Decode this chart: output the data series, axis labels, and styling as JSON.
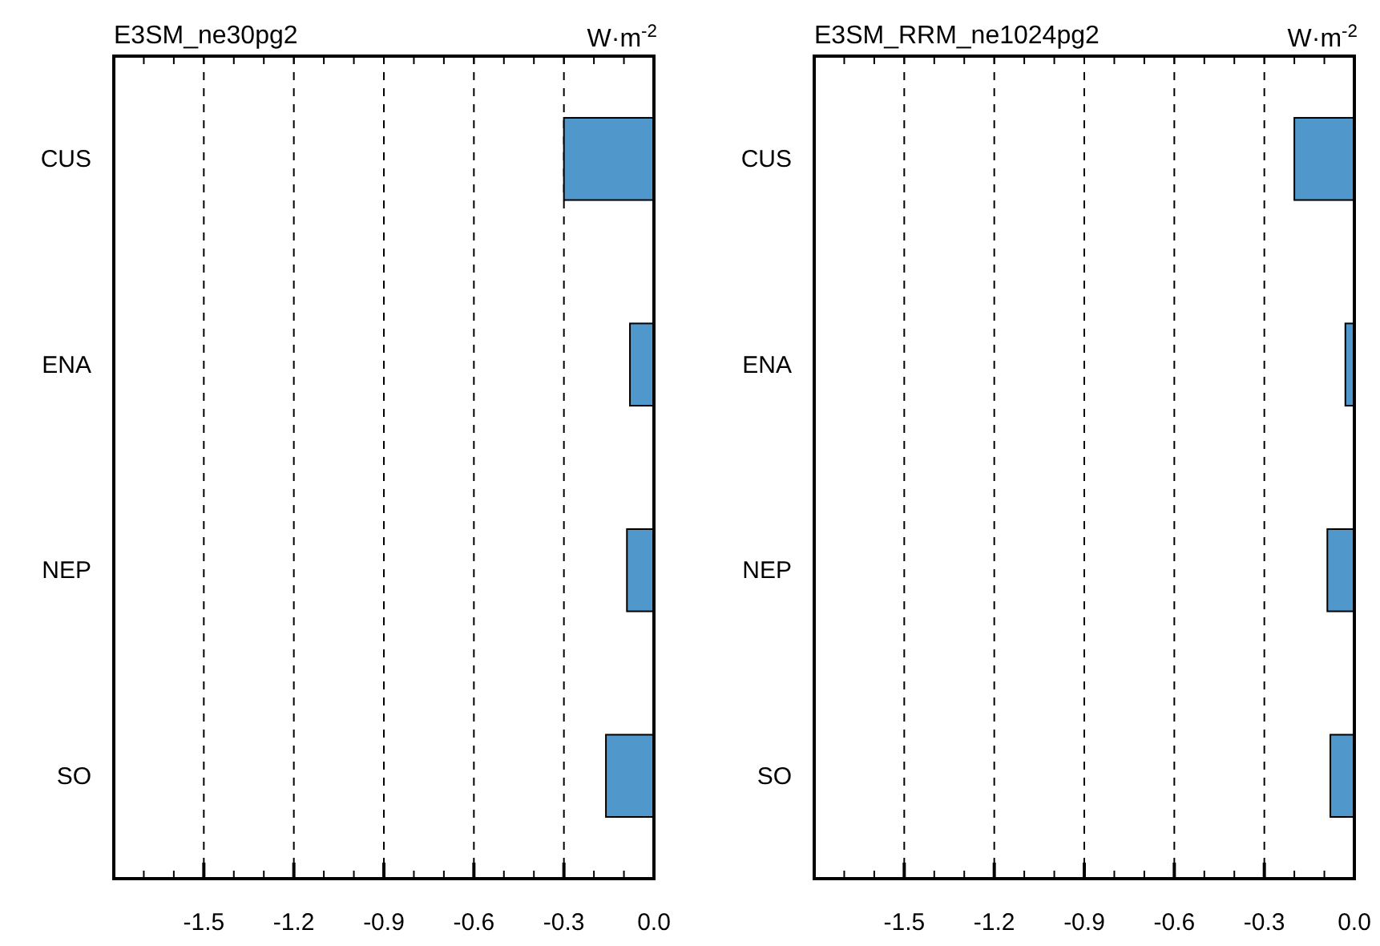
{
  "chart_data": [
    {
      "type": "bar",
      "orientation": "horizontal",
      "title": "E3SM_ne30pg2",
      "annotations": [
        "W·m$^{-2}$"
      ],
      "categories": [
        "CUS",
        "ENA",
        "NEP",
        "SO"
      ],
      "values": [
        -0.3,
        -0.08,
        -0.09,
        -0.16
      ],
      "color": "#5097cb",
      "xlim": [
        -1.8,
        0
      ],
      "xticks": [
        -1.5,
        -1.2,
        -0.9,
        -0.6,
        -0.3,
        {
          "value": 0,
          "label": "0.0"
        }
      ],
      "grid": "x"
    },
    {
      "type": "bar",
      "orientation": "horizontal",
      "title": "E3SM_RRM_ne1024pg2",
      "annotations": [
        "W·m$^{-2}$"
      ],
      "categories": [
        "CUS",
        "ENA",
        "NEP",
        "SO"
      ],
      "values": [
        -0.2,
        -0.03,
        -0.09,
        -0.08
      ],
      "color": "#5097cb",
      "xlim": [
        -1.8,
        0
      ],
      "xticks": [
        -1.5,
        -1.2,
        -0.9,
        -0.6,
        -0.3,
        {
          "value": 0,
          "label": "0.0"
        }
      ],
      "grid": "x"
    }
  ]
}
